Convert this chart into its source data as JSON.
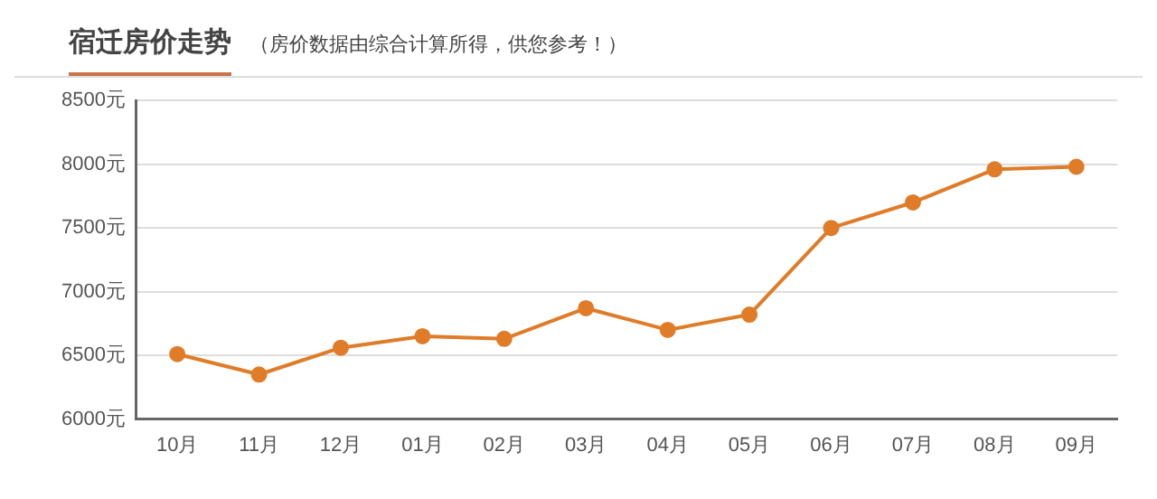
{
  "chart_data": {
    "type": "line",
    "title": "宿迁房价走势",
    "subtitle": "（房价数据由综合计算所得，供您参考！）",
    "categories": [
      "10月",
      "11月",
      "12月",
      "01月",
      "02月",
      "03月",
      "04月",
      "05月",
      "06月",
      "07月",
      "08月",
      "09月"
    ],
    "series": [
      {
        "color": "#e07b28",
        "values": [
          6510,
          6350,
          6560,
          6650,
          6630,
          6870,
          6700,
          6820,
          7500,
          7700,
          7960,
          7980
        ]
      }
    ],
    "ylim": [
      6000,
      8500
    ],
    "yticks": [
      {
        "value": 6000,
        "label": "6000元"
      },
      {
        "value": 6500,
        "label": "6500元"
      },
      {
        "value": 7000,
        "label": "7000元"
      },
      {
        "value": 7500,
        "label": "7500元"
      },
      {
        "value": 8000,
        "label": "8000元"
      },
      {
        "value": 8500,
        "label": "8500元"
      }
    ],
    "grid": "y",
    "legend": false,
    "marker": "circle",
    "line_style": "solid"
  }
}
